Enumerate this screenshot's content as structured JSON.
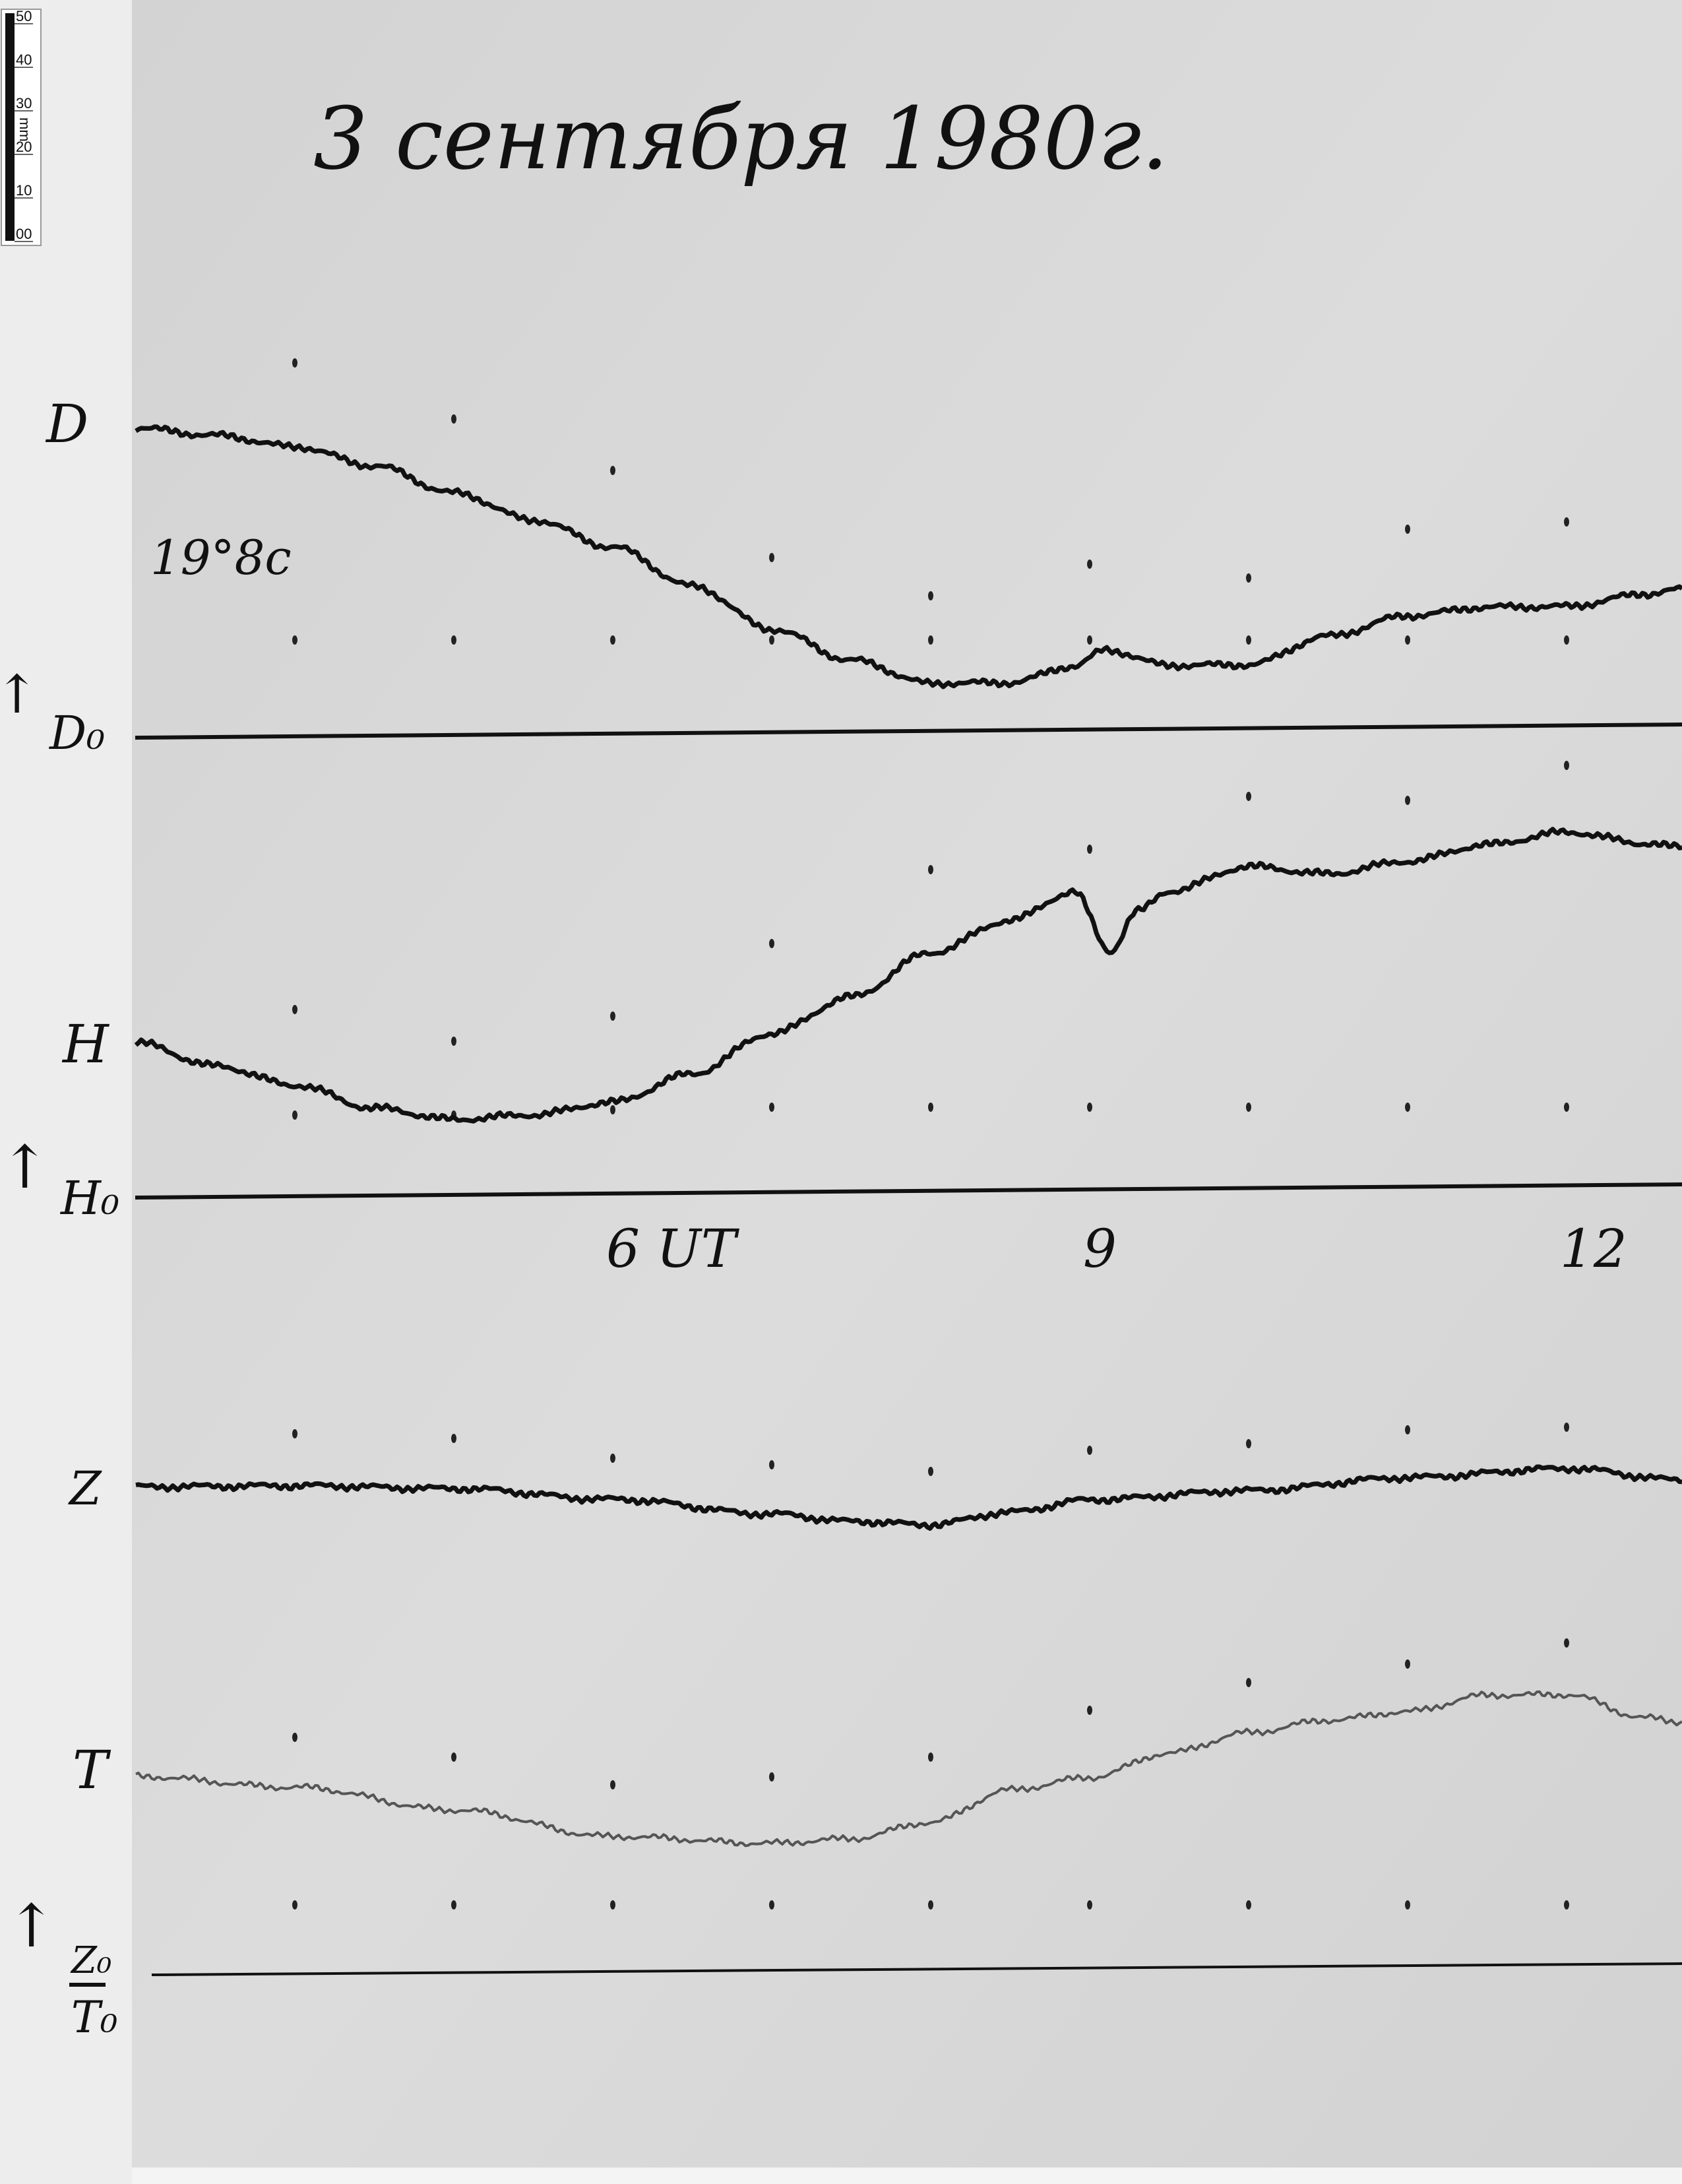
{
  "title": "3 сентября 1980г.",
  "ruler": {
    "unit": "mm",
    "ticks": [
      "50",
      "40",
      "30",
      "20",
      "10",
      "00"
    ]
  },
  "labels": {
    "D": "D",
    "D0": "D₀",
    "D_value": "19°8c",
    "H": "H",
    "H0": "H₀",
    "Z": "Z",
    "T": "T",
    "Z0": "Z₀",
    "T0": "T₀",
    "arrow": "↑"
  },
  "time_axis": {
    "labels": [
      {
        "hour": 6,
        "text": "6 UT"
      },
      {
        "hour": 9,
        "text": "9"
      },
      {
        "hour": 12,
        "text": "12"
      }
    ]
  },
  "colors": {
    "paper": "#d9d9d9",
    "margin": "#eeeeee",
    "ink": "#111111",
    "t_trace": "#555555"
  },
  "chart_data": {
    "type": "line",
    "title": "3 сентября 1980г.",
    "xlabel": "UT",
    "x_ticks": [
      6,
      9,
      12
    ],
    "xlim": [
      3,
      12.7
    ],
    "grid": false,
    "series": [
      {
        "name": "D",
        "baseline": "D₀",
        "x": [
          3,
          3.5,
          4,
          4.5,
          5,
          5.5,
          6,
          6.5,
          7,
          7.5,
          8,
          8.5,
          8.9,
          9.1,
          9.5,
          10,
          10.5,
          11,
          11.5,
          12,
          12.5,
          12.7
        ],
        "y": [
          39,
          38,
          36.5,
          34,
          30.5,
          27,
          23.5,
          18.5,
          13,
          9,
          6,
          6,
          8,
          10,
          8,
          8,
          11.5,
          14,
          15,
          15,
          16.5,
          17
        ]
      },
      {
        "name": "H",
        "baseline": "H₀",
        "x": [
          3,
          3.5,
          4,
          4.5,
          5,
          5.5,
          6,
          6.5,
          7,
          7.5,
          8,
          8.5,
          8.9,
          9.13,
          9.3,
          9.5,
          10,
          10.5,
          11,
          11.5,
          12,
          12.5,
          12.7
        ],
        "y": [
          19.5,
          16.5,
          14,
          11,
          9.5,
          10,
          11.5,
          15,
          20,
          24.5,
          30,
          34,
          37.5,
          30,
          35,
          37.5,
          40.5,
          39.5,
          41,
          43,
          44.5,
          43,
          42.5
        ]
      },
      {
        "name": "Z",
        "baseline": "Z₀",
        "x": [
          3,
          4,
          5,
          6,
          7,
          7.5,
          8,
          8.5,
          9,
          10,
          11,
          12,
          12.7
        ],
        "y": [
          61.5,
          61.5,
          61,
          59.5,
          57.5,
          56.5,
          56,
          57.5,
          59,
          60,
          61.5,
          62.5,
          61
        ]
      },
      {
        "name": "T",
        "baseline": "T₀",
        "x": [
          3,
          4,
          5,
          6,
          7,
          7.5,
          8,
          8.5,
          9,
          9.5,
          10,
          10.5,
          11,
          11.5,
          12,
          12.5,
          12.7
        ],
        "y": [
          25,
          23.5,
          20.5,
          17,
          16,
          16.5,
          18.5,
          22.5,
          24,
          27,
          29.5,
          31,
          32,
          34,
          34,
          31,
          30.5
        ]
      }
    ]
  }
}
